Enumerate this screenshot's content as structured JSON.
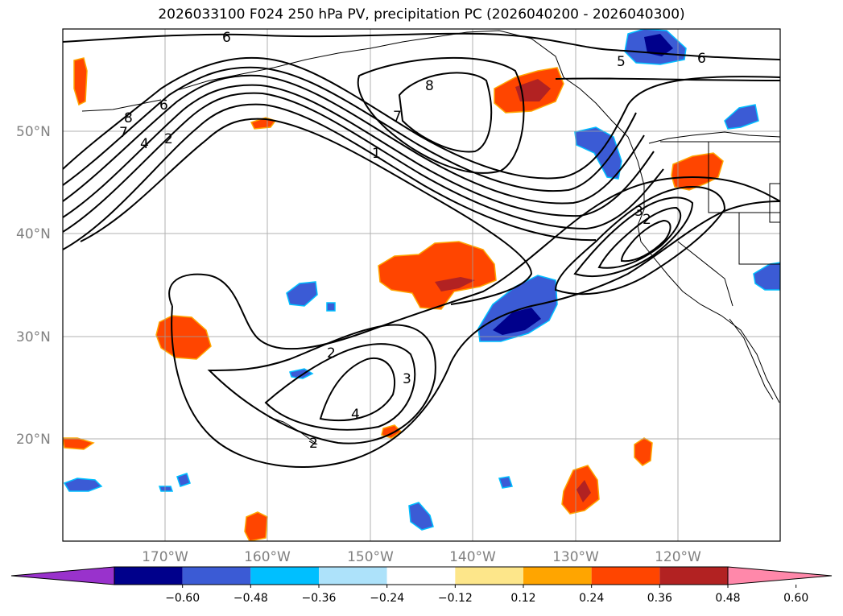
{
  "title": "2026033100 F024 250 hPa PV, precipitation PC (2026040200 - 2026040300)",
  "lat_labels": [
    "50°N",
    "40°N",
    "30°N",
    "20°N"
  ],
  "lon_labels": [
    "170°W",
    "160°W",
    "150°W",
    "140°W",
    "130°W",
    "120°W"
  ],
  "colorbar": {
    "ticks": [
      "−0.60",
      "−0.48",
      "−0.36",
      "−0.24",
      "−0.12",
      "0.12",
      "0.24",
      "0.36",
      "0.48",
      "0.60"
    ],
    "colors": [
      "#9932CC",
      "#00008B",
      "#3B5BD5",
      "#00BFFF",
      "#ADE2FA",
      "#FFFFFF",
      "#FDE68A",
      "#FFA500",
      "#FF4500",
      "#B22222",
      "#FF88AA"
    ]
  },
  "contour_labels": [
    "6",
    "6",
    "8",
    "7",
    "1",
    "8",
    "7",
    "4",
    "2",
    "6",
    "3",
    "2",
    "2",
    "3",
    "4",
    "2",
    "5"
  ],
  "colors": {
    "pos_fill": "#FF4500",
    "pos_core": "#B22222",
    "pos_edge": "#FFA500",
    "neg_fill": "#3B5BD5",
    "neg_core": "#00008B",
    "neg_edge": "#00BFFF"
  }
}
